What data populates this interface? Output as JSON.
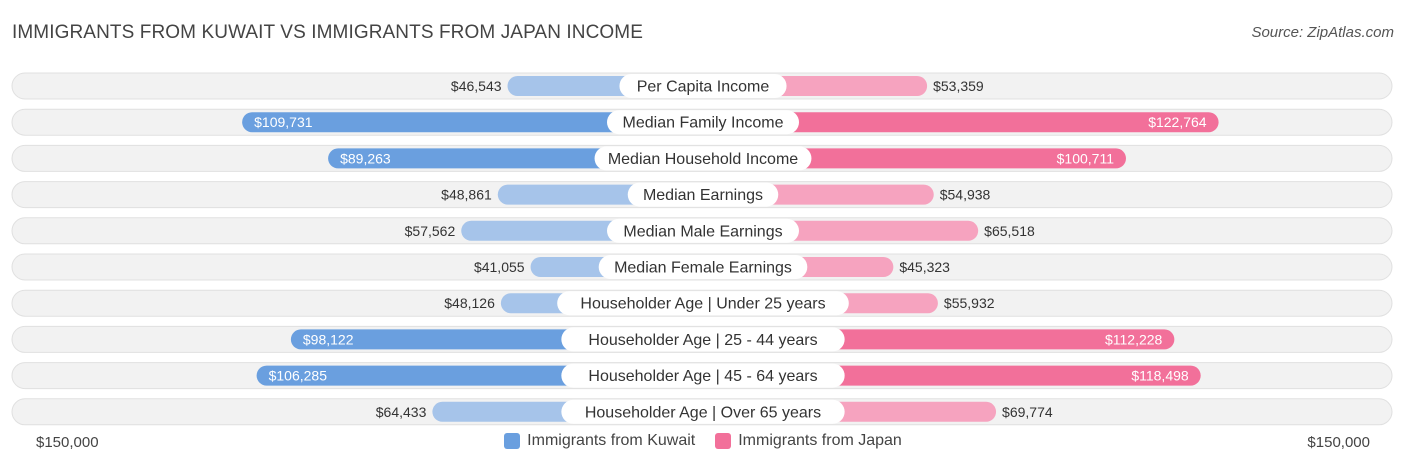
{
  "title": "IMMIGRANTS FROM KUWAIT VS IMMIGRANTS FROM JAPAN INCOME",
  "source": "Source: ZipAtlas.com",
  "colors": {
    "left_strong": "#6a9fdf",
    "left_light": "#a6c4ea",
    "right_strong": "#f2709a",
    "right_light": "#f6a3bf",
    "row_bg": "#f2f2f2",
    "row_border": "#e0e0e0"
  },
  "chart_data": {
    "type": "bar",
    "orientation": "diverging-horizontal",
    "axis_max": 150000,
    "axis_left_label": "$150,000",
    "axis_right_label": "$150,000",
    "legend_placement": "bottom-center",
    "series": [
      {
        "name": "Immigrants from Kuwait",
        "side": "left"
      },
      {
        "name": "Immigrants from Japan",
        "side": "right"
      }
    ],
    "categories": [
      "Per Capita Income",
      "Median Family Income",
      "Median Household Income",
      "Median Earnings",
      "Median Male Earnings",
      "Median Female Earnings",
      "Householder Age | Under 25 years",
      "Householder Age | 25 - 44 years",
      "Householder Age | 45 - 64 years",
      "Householder Age | Over 65 years"
    ],
    "left_values": [
      46543,
      109731,
      89263,
      48861,
      57562,
      41055,
      48126,
      98122,
      106285,
      64433
    ],
    "left_labels": [
      "$46,543",
      "$109,731",
      "$89,263",
      "$48,861",
      "$57,562",
      "$41,055",
      "$48,126",
      "$98,122",
      "$106,285",
      "$64,433"
    ],
    "right_values": [
      53359,
      122764,
      100711,
      54938,
      65518,
      45323,
      55932,
      112228,
      118498,
      69774
    ],
    "right_labels": [
      "$53,359",
      "$122,764",
      "$100,711",
      "$54,938",
      "$65,518",
      "$45,323",
      "$55,932",
      "$112,228",
      "$118,498",
      "$69,774"
    ],
    "highlight_rows": [
      1,
      2,
      7,
      8
    ]
  }
}
